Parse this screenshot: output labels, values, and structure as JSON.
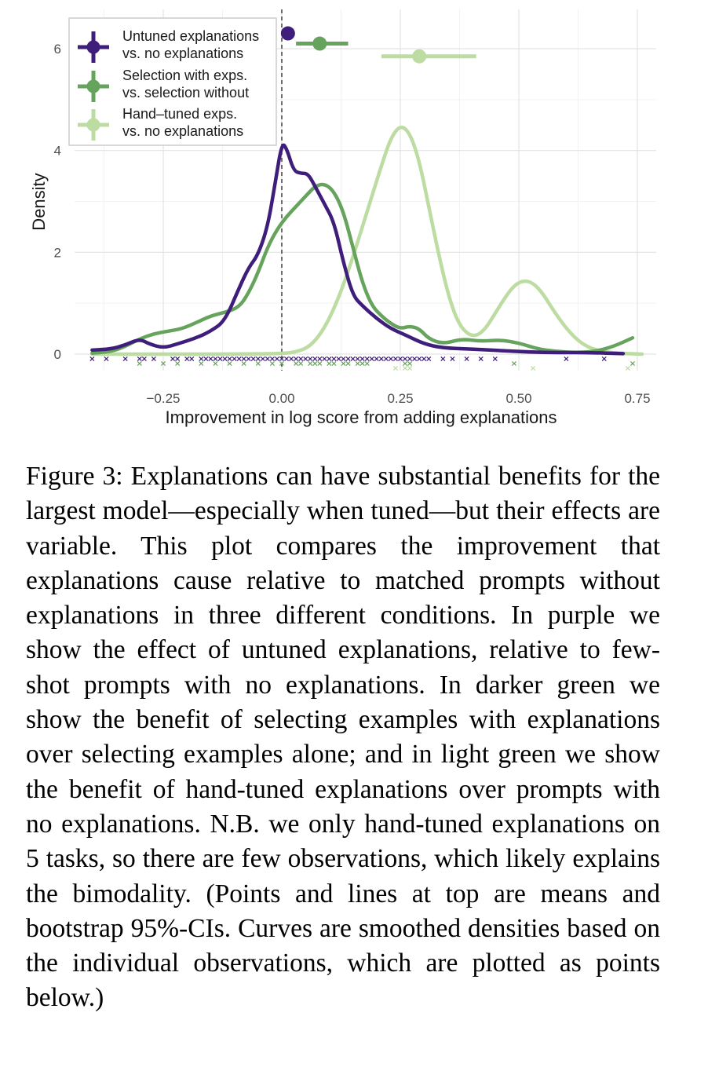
{
  "chart_data": {
    "type": "density",
    "xlabel": "Improvement in log score from adding explanations",
    "ylabel": "Density",
    "xlim": [
      -0.42,
      0.76
    ],
    "ylim": [
      0,
      6.6
    ],
    "xticks": [
      -0.25,
      0.0,
      0.25,
      0.5,
      0.75
    ],
    "xtick_labels": [
      "−0.25",
      "0.00",
      "0.25",
      "0.50",
      "0.75"
    ],
    "yticks": [
      0,
      2,
      4,
      6
    ],
    "ytick_labels": [
      "0",
      "2",
      "4",
      "6"
    ],
    "grid": true,
    "reference_line_x": 0,
    "legend_position": "top-left",
    "series": [
      {
        "name": "Untuned explanations vs. no explanations",
        "legend_lines": [
          "Untuned explanations",
          "vs. no explanations"
        ],
        "color": "#3f1d7a",
        "mean": 0.013,
        "ci": [
          0.013,
          0.013
        ],
        "mean_y": 6.3,
        "density": [
          [
            -0.4,
            0.08
          ],
          [
            -0.36,
            0.1
          ],
          [
            -0.33,
            0.18
          ],
          [
            -0.3,
            0.3
          ],
          [
            -0.28,
            0.2
          ],
          [
            -0.25,
            0.12
          ],
          [
            -0.22,
            0.2
          ],
          [
            -0.18,
            0.32
          ],
          [
            -0.15,
            0.45
          ],
          [
            -0.12,
            0.65
          ],
          [
            -0.09,
            1.3
          ],
          [
            -0.07,
            1.7
          ],
          [
            -0.05,
            1.95
          ],
          [
            -0.03,
            2.5
          ],
          [
            -0.015,
            3.3
          ],
          [
            0.0,
            4.15
          ],
          [
            0.01,
            4.05
          ],
          [
            0.025,
            3.6
          ],
          [
            0.04,
            3.55
          ],
          [
            0.055,
            3.55
          ],
          [
            0.07,
            3.3
          ],
          [
            0.09,
            2.95
          ],
          [
            0.11,
            2.6
          ],
          [
            0.13,
            1.8
          ],
          [
            0.15,
            1.15
          ],
          [
            0.17,
            0.95
          ],
          [
            0.2,
            0.7
          ],
          [
            0.23,
            0.5
          ],
          [
            0.26,
            0.38
          ],
          [
            0.3,
            0.2
          ],
          [
            0.34,
            0.12
          ],
          [
            0.4,
            0.1
          ],
          [
            0.46,
            0.07
          ],
          [
            0.52,
            0.04
          ],
          [
            0.58,
            0.03
          ],
          [
            0.65,
            0.03
          ],
          [
            0.72,
            0.01
          ]
        ],
        "points_x": [
          -0.4,
          -0.37,
          -0.33,
          -0.3,
          -0.29,
          -0.27,
          -0.23,
          -0.22,
          -0.2,
          -0.19,
          -0.17,
          -0.16,
          -0.15,
          -0.14,
          -0.13,
          -0.12,
          -0.11,
          -0.1,
          -0.09,
          -0.08,
          -0.07,
          -0.06,
          -0.05,
          -0.04,
          -0.03,
          -0.02,
          -0.01,
          0.0,
          0.01,
          0.02,
          0.03,
          0.04,
          0.05,
          0.06,
          0.07,
          0.08,
          0.09,
          0.1,
          0.11,
          0.12,
          0.13,
          0.14,
          0.15,
          0.16,
          0.17,
          0.18,
          0.19,
          0.2,
          0.21,
          0.22,
          0.23,
          0.24,
          0.25,
          0.26,
          0.27,
          0.28,
          0.29,
          0.3,
          0.31,
          0.34,
          0.36,
          0.39,
          0.42,
          0.45,
          0.6,
          0.68
        ]
      },
      {
        "name": "Selection with exps. vs. selection without",
        "legend_lines": [
          "Selection with exps.",
          "vs. selection without"
        ],
        "color": "#66a35d",
        "mean": 0.08,
        "ci": [
          0.03,
          0.14
        ],
        "mean_y": 6.1,
        "density": [
          [
            -0.4,
            0.02
          ],
          [
            -0.36,
            0.05
          ],
          [
            -0.33,
            0.15
          ],
          [
            -0.3,
            0.3
          ],
          [
            -0.27,
            0.4
          ],
          [
            -0.24,
            0.45
          ],
          [
            -0.21,
            0.5
          ],
          [
            -0.18,
            0.62
          ],
          [
            -0.15,
            0.75
          ],
          [
            -0.12,
            0.82
          ],
          [
            -0.09,
            0.92
          ],
          [
            -0.07,
            1.2
          ],
          [
            -0.05,
            1.6
          ],
          [
            -0.03,
            2.1
          ],
          [
            -0.01,
            2.45
          ],
          [
            0.01,
            2.7
          ],
          [
            0.03,
            2.9
          ],
          [
            0.05,
            3.1
          ],
          [
            0.07,
            3.3
          ],
          [
            0.09,
            3.35
          ],
          [
            0.11,
            3.2
          ],
          [
            0.13,
            2.8
          ],
          [
            0.15,
            2.1
          ],
          [
            0.17,
            1.4
          ],
          [
            0.19,
            0.95
          ],
          [
            0.21,
            0.75
          ],
          [
            0.23,
            0.6
          ],
          [
            0.25,
            0.5
          ],
          [
            0.27,
            0.55
          ],
          [
            0.29,
            0.5
          ],
          [
            0.31,
            0.3
          ],
          [
            0.34,
            0.2
          ],
          [
            0.38,
            0.3
          ],
          [
            0.42,
            0.25
          ],
          [
            0.46,
            0.28
          ],
          [
            0.5,
            0.22
          ],
          [
            0.54,
            0.1
          ],
          [
            0.58,
            0.05
          ],
          [
            0.62,
            0.03
          ],
          [
            0.66,
            0.05
          ],
          [
            0.7,
            0.15
          ],
          [
            0.74,
            0.32
          ]
        ],
        "points_x": [
          -0.3,
          -0.25,
          -0.22,
          -0.17,
          -0.14,
          -0.11,
          -0.08,
          -0.05,
          -0.02,
          0.0,
          0.03,
          0.04,
          0.06,
          0.07,
          0.08,
          0.1,
          0.11,
          0.13,
          0.14,
          0.16,
          0.17,
          0.18,
          0.26,
          0.27,
          0.49,
          0.74
        ]
      },
      {
        "name": "Hand-tuned exps. vs. no explanations",
        "legend_lines": [
          "Hand–tuned exps.",
          "vs. no explanations"
        ],
        "color": "#bcdca1",
        "mean": 0.29,
        "ci": [
          0.21,
          0.41
        ],
        "mean_y": 5.85,
        "density": [
          [
            -0.4,
            0.0
          ],
          [
            -0.3,
            0.0
          ],
          [
            -0.2,
            0.0
          ],
          [
            -0.1,
            0.0
          ],
          [
            0.0,
            0.01
          ],
          [
            0.03,
            0.04
          ],
          [
            0.06,
            0.15
          ],
          [
            0.09,
            0.5
          ],
          [
            0.12,
            1.1
          ],
          [
            0.15,
            1.9
          ],
          [
            0.18,
            2.8
          ],
          [
            0.21,
            3.7
          ],
          [
            0.23,
            4.25
          ],
          [
            0.25,
            4.5
          ],
          [
            0.27,
            4.35
          ],
          [
            0.29,
            3.8
          ],
          [
            0.31,
            2.9
          ],
          [
            0.33,
            2.0
          ],
          [
            0.35,
            1.2
          ],
          [
            0.37,
            0.65
          ],
          [
            0.39,
            0.4
          ],
          [
            0.41,
            0.35
          ],
          [
            0.43,
            0.5
          ],
          [
            0.45,
            0.8
          ],
          [
            0.47,
            1.1
          ],
          [
            0.49,
            1.35
          ],
          [
            0.51,
            1.45
          ],
          [
            0.53,
            1.4
          ],
          [
            0.55,
            1.2
          ],
          [
            0.57,
            0.9
          ],
          [
            0.6,
            0.5
          ],
          [
            0.63,
            0.22
          ],
          [
            0.66,
            0.08
          ],
          [
            0.7,
            0.02
          ],
          [
            0.76,
            0.0
          ]
        ],
        "points_x": [
          0.24,
          0.26,
          0.27,
          0.53,
          0.73
        ]
      }
    ]
  },
  "caption": {
    "label": "Figure 3:",
    "emphasis": "Explanations can have substantial benefits for the largest model—especially when tuned—but their effects are variable.",
    "body": "This plot compares the improvement that explanations cause relative to matched prompts without explanations in three different conditions. In purple we show the effect of untuned explanations, relative to few-shot prompts with no explanations. In darker green we show the benefit of selecting examples with explanations over selecting examples alone; and in light green we show the benefit of hand-tuned explanations over prompts with no explanations. N.B. we only hand-tuned explanations on 5 tasks, so there are few observations, which likely explains the bimodality. (Points and lines at top are means and bootstrap 95%-CIs. Curves are smoothed densities based on the individual observations, which are plotted as points below.)"
  }
}
